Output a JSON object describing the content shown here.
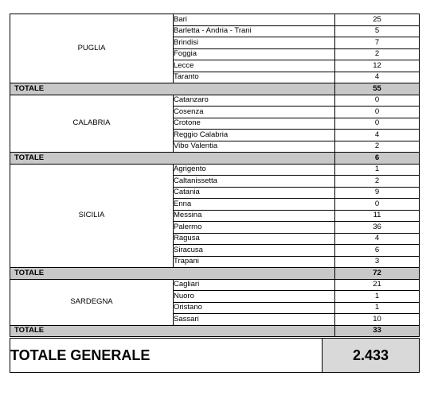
{
  "groups": [
    {
      "region": "PUGLIA",
      "rows": [
        {
          "city": "Bari",
          "value": "25"
        },
        {
          "city": "Barletta - Andria - Trani",
          "value": "5"
        },
        {
          "city": "Brindisi",
          "value": "7"
        },
        {
          "city": "Foggia",
          "value": "2"
        },
        {
          "city": "Lecce",
          "value": "12"
        },
        {
          "city": "Taranto",
          "value": "4"
        }
      ],
      "total_label": "TOTALE",
      "total_value": "55"
    },
    {
      "region": "CALABRIA",
      "rows": [
        {
          "city": "Catanzaro",
          "value": "0"
        },
        {
          "city": "Cosenza",
          "value": "0"
        },
        {
          "city": "Crotone",
          "value": "0"
        },
        {
          "city": "Reggio Calabria",
          "value": "4"
        },
        {
          "city": "Vibo Valentia",
          "value": "2"
        }
      ],
      "total_label": "TOTALE",
      "total_value": "6"
    },
    {
      "region": "SICILIA",
      "rows": [
        {
          "city": "Agrigento",
          "value": "1"
        },
        {
          "city": "Caltanissetta",
          "value": "2"
        },
        {
          "city": "Catania",
          "value": "9"
        },
        {
          "city": "Enna",
          "value": "0"
        },
        {
          "city": "Messina",
          "value": "11"
        },
        {
          "city": "Palermo",
          "value": "36"
        },
        {
          "city": "Ragusa",
          "value": "4"
        },
        {
          "city": "Siracusa",
          "value": "6"
        },
        {
          "city": "Trapani",
          "value": "3"
        }
      ],
      "total_label": "TOTALE",
      "total_value": "72"
    },
    {
      "region": "SARDEGNA",
      "rows": [
        {
          "city": "Cagliari",
          "value": "21"
        },
        {
          "city": "Nuoro",
          "value": "1"
        },
        {
          "city": "Oristano",
          "value": "1"
        },
        {
          "city": "Sassari",
          "value": "10"
        }
      ],
      "total_label": "TOTALE",
      "total_value": "33"
    }
  ],
  "grand_total": {
    "label": "TOTALE GENERALE",
    "value": "2.433"
  }
}
